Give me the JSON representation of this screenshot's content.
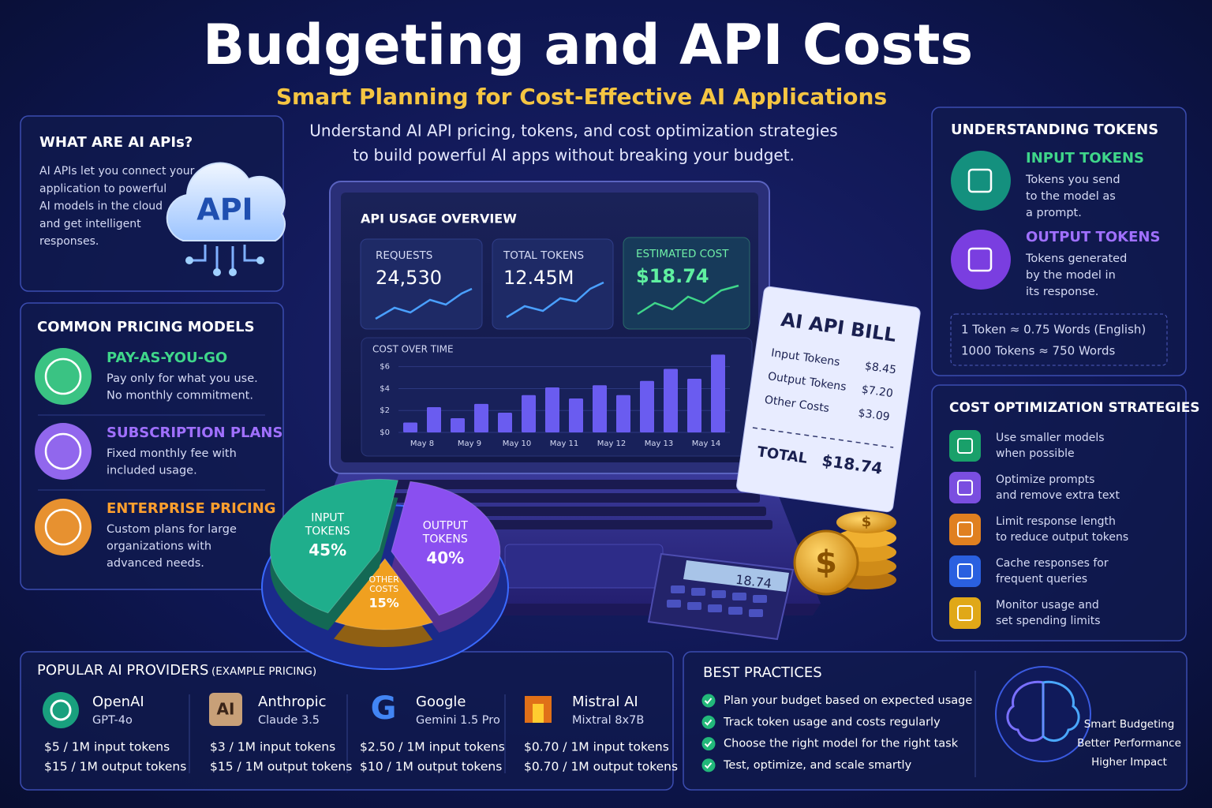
{
  "header": {
    "title": "Budgeting and API Costs",
    "subtitle": "Smart Planning for Cost-Effective AI Applications",
    "intro": [
      "Understand AI API pricing, tokens, and cost optimization strategies",
      "to build powerful AI apps without breaking your budget."
    ]
  },
  "apis": {
    "title": "WHAT ARE AI APIs?",
    "icon": "API",
    "text": [
      "AI APIs let you connect your",
      "application to powerful",
      "AI models in the cloud",
      "and get intelligent",
      "responses."
    ]
  },
  "pricing": {
    "title": "COMMON PRICING MODELS",
    "items": [
      {
        "name": "PAY-AS-YOU-GO",
        "color": "#3fd68a",
        "text": [
          "Pay only for what you use.",
          "No monthly commitment."
        ]
      },
      {
        "name": "SUBSCRIPTION PLANS",
        "color": "#a070ff",
        "text": [
          "Fixed monthly fee with",
          "included usage."
        ]
      },
      {
        "name": "ENTERPRISE PRICING",
        "color": "#ff9f2e",
        "text": [
          "Custom plans for large",
          "organizations with",
          "advanced needs."
        ]
      }
    ]
  },
  "dashboard": {
    "title": "API USAGE OVERVIEW",
    "stats": [
      {
        "label": "REQUESTS",
        "value": "24,530"
      },
      {
        "label": "TOTAL TOKENS",
        "value": "12.45M"
      },
      {
        "label": "ESTIMATED COST",
        "value": "$18.74"
      }
    ],
    "chart": {
      "type": "bar",
      "title": "COST OVER TIME",
      "color": "#6a5cf0",
      "ylim": [
        0,
        7.2
      ],
      "yticks": [
        {
          "value": 0,
          "label": "$0"
        },
        {
          "value": 2,
          "label": "$2"
        },
        {
          "value": 4,
          "label": "$4"
        },
        {
          "value": 6,
          "label": "$6"
        }
      ],
      "categories": [
        "May 8",
        null,
        "May 9",
        null,
        "May 10",
        null,
        "May 11",
        null,
        "May 12",
        null,
        "May 13",
        null,
        "May 14",
        null
      ],
      "values": [
        0.9,
        2.3,
        1.3,
        2.6,
        1.8,
        3.4,
        4.1,
        3.1,
        4.3,
        3.4,
        4.7,
        5.8,
        4.9,
        7.1
      ]
    }
  },
  "pie": {
    "type": "pie",
    "labels": [
      [
        "INPUT",
        "TOKENS"
      ],
      [
        "OUTPUT",
        "TOKENS"
      ],
      [
        "OTHER",
        "COSTS"
      ]
    ],
    "values": [
      45,
      40,
      15
    ],
    "value_labels": [
      "45%",
      "40%",
      "15%"
    ],
    "colors": [
      "#1fae8c",
      "#8a4ff0",
      "#f0a020"
    ]
  },
  "bill": {
    "title": "AI API BILL",
    "items": [
      {
        "name": "Input Tokens",
        "amount": "$8.45"
      },
      {
        "name": "Output Tokens",
        "amount": "$7.20"
      },
      {
        "name": "Other Costs",
        "amount": "$3.09"
      }
    ],
    "total_label": "TOTAL",
    "total": "$18.74"
  },
  "calculator": "18.74",
  "coin_symbol": "$",
  "tokens": {
    "title": "UNDERSTANDING TOKENS",
    "items": [
      {
        "name": "INPUT TOKENS",
        "color": "#3fd68a",
        "text": [
          "Tokens you send",
          "to the model as",
          "a prompt."
        ]
      },
      {
        "name": "OUTPUT TOKENS",
        "color": "#a070ff",
        "text": [
          "Tokens generated",
          "by the model  in",
          "its response."
        ]
      }
    ],
    "notes": [
      "1 Token ≈ 0.75 Words (English)",
      "1000 Tokens ≈ 750 Words"
    ]
  },
  "strategies": {
    "title": "COST OPTIMIZATION STRATEGIES",
    "items": [
      [
        "Use smaller models",
        "when possible"
      ],
      [
        "Optimize prompts",
        "and remove extra text"
      ],
      [
        "Limit response length",
        "to reduce output tokens"
      ],
      [
        "Cache responses for",
        "frequent queries"
      ],
      [
        "Monitor usage and",
        "set spending limits"
      ]
    ]
  },
  "providers": {
    "title": "POPULAR AI PROVIDERS",
    "note": "(EXAMPLE PRICING)",
    "items": [
      {
        "name": "OpenAI",
        "model": "GPT-4o",
        "input": "$5 / 1M input tokens",
        "output": "$15 / 1M output tokens"
      },
      {
        "name": "Anthropic",
        "model": "Claude 3.5",
        "logo": "AI",
        "input": "$3 / 1M input tokens",
        "output": "$15 / 1M output tokens"
      },
      {
        "name": "Google",
        "model": "Gemini 1.5 Pro",
        "logo": "G",
        "input": "$2.50 / 1M input tokens",
        "output": "$10 / 1M output tokens"
      },
      {
        "name": "Mistral AI",
        "model": "Mixtral 8x7B",
        "input": "$0.70 / 1M input tokens",
        "output": "$0.70 / 1M output tokens"
      }
    ]
  },
  "best": {
    "title": "BEST PRACTICES",
    "items": [
      "Plan your budget based on expected usage",
      "Track token usage and costs regularly",
      "Choose the right model for the right task",
      "Test, optimize, and scale smartly"
    ],
    "badge": [
      "Smart Budgeting",
      "Better Performance",
      "Higher Impact"
    ]
  }
}
